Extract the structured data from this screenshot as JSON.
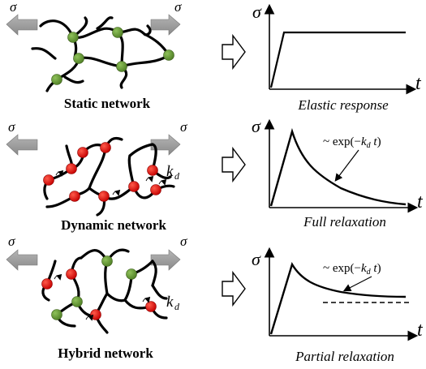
{
  "rows": [
    {
      "key": "static",
      "stress_symbol": "σ",
      "network_label": "Static network",
      "chart_ylabel": "σ",
      "chart_xlabel": "t",
      "caption": "Elastic response",
      "annotation": "",
      "crosslink_color": "#6c9a3a"
    },
    {
      "key": "dynamic",
      "stress_symbol": "σ",
      "network_label": "Dynamic network",
      "chart_ylabel": "σ",
      "chart_xlabel": "t",
      "caption": "Full relaxation",
      "annotation": "~ exp(−k_d t)",
      "rate_label": "k_d",
      "crosslink_color": "#e01010"
    },
    {
      "key": "hybrid",
      "stress_symbol": "σ",
      "network_label": "Hybrid network",
      "chart_ylabel": "σ",
      "chart_xlabel": "t",
      "caption": "Partial relaxation",
      "annotation": "~ exp(−k_d t)",
      "rate_label": "k_d",
      "crosslink_color": "#e01010",
      "static_crosslink_color": "#6c9a3a"
    }
  ],
  "chart_data": [
    {
      "type": "line",
      "title": "",
      "xlabel": "t",
      "ylabel": "σ",
      "caption": "Elastic response",
      "shape": "linear rise then constant plateau"
    },
    {
      "type": "line",
      "title": "",
      "xlabel": "t",
      "ylabel": "σ",
      "caption": "Full relaxation",
      "shape": "linear rise then exponential decay to zero",
      "annotation": "~ exp(−k_d t)"
    },
    {
      "type": "line",
      "title": "",
      "xlabel": "t",
      "ylabel": "σ",
      "caption": "Partial relaxation",
      "shape": "linear rise then exponential decay to a nonzero plateau (dashed asymptote)",
      "annotation": "~ exp(−k_d t)"
    }
  ]
}
